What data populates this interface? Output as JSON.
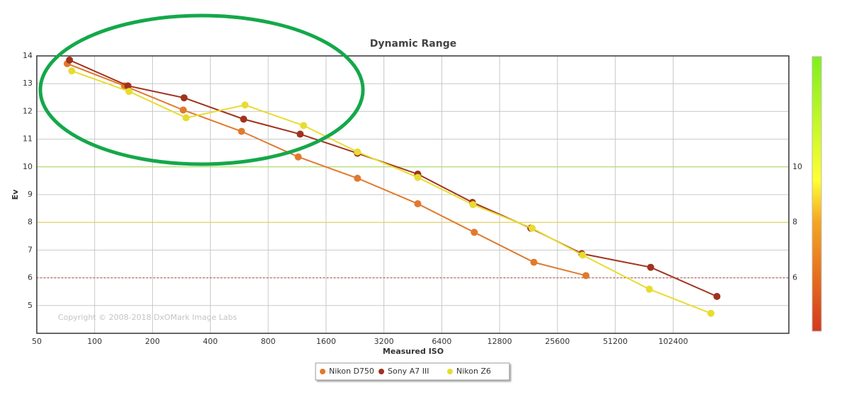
{
  "chart_data": {
    "type": "line",
    "title": "Dynamic Range",
    "x_label": "Measured ISO",
    "y_label": "Ev",
    "annotation": "Copyright © 2008-2018 DxOMark Image Labs",
    "xscale": "log",
    "log_base": 2,
    "xlim": [
      50,
      409600
    ],
    "ylim": [
      4,
      14
    ],
    "xticks": [
      50,
      100,
      200,
      400,
      800,
      1600,
      3200,
      6400,
      12800,
      25600,
      51200,
      102400
    ],
    "yticks": [
      5,
      6,
      7,
      8,
      9,
      10,
      11,
      12,
      13,
      14
    ],
    "grid": true,
    "legend": "bottom",
    "reference_lines": [
      {
        "value": 10,
        "color": "#a6e05a",
        "dashed": false
      },
      {
        "value": 8,
        "color": "#e8d44a",
        "dashed": false
      },
      {
        "value": 6,
        "color": "#c0392b",
        "dashed": true
      }
    ],
    "series": [
      {
        "name": "Nikon D750",
        "color": "#e07a2e",
        "x": [
          72,
          143,
          289,
          581,
          1146,
          2331,
          4800,
          9450,
          19300,
          36000
        ],
        "values": [
          13.72,
          12.92,
          12.05,
          11.28,
          10.36,
          9.59,
          8.67,
          7.64,
          6.56,
          6.08
        ]
      },
      {
        "name": "Sony A7 III",
        "color": "#a0321e",
        "x": [
          74,
          149,
          292,
          596,
          1174,
          2331,
          4800,
          9240,
          18600,
          34300,
          78200,
          173000
        ],
        "values": [
          13.85,
          12.92,
          12.49,
          11.72,
          11.18,
          10.49,
          9.74,
          8.72,
          7.79,
          6.87,
          6.38,
          5.33
        ]
      },
      {
        "name": "Nikon Z6",
        "color": "#e8dc30",
        "x": [
          76,
          151,
          299,
          606,
          1222,
          2331,
          4800,
          9300,
          18900,
          34600,
          77000,
          161000
        ],
        "values": [
          13.46,
          12.72,
          11.77,
          12.23,
          11.49,
          10.54,
          9.62,
          8.64,
          7.79,
          6.82,
          5.59,
          4.72
        ]
      }
    ]
  }
}
